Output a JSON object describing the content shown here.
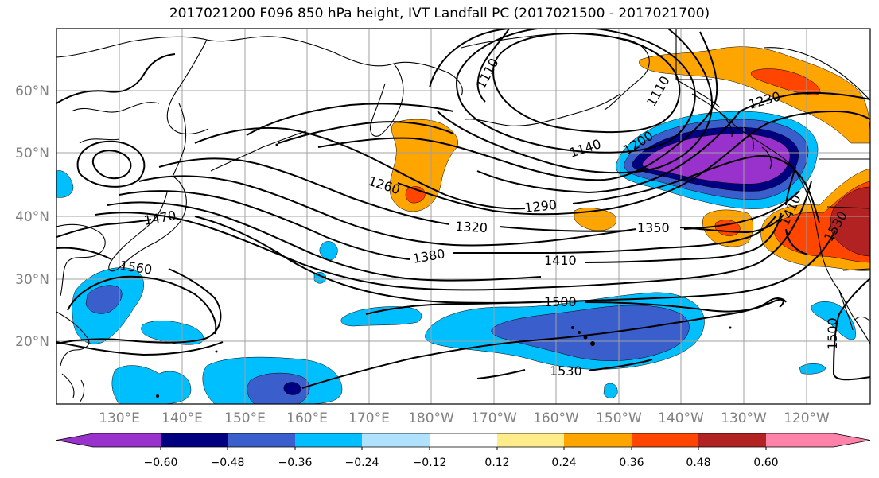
{
  "title": "2017021200 F096 850 hPa height, IVT Landfall PC (2017021500 - 2017021700)",
  "colors": {
    "fill_purple": "#9932CC",
    "fill_navy": "#000080",
    "fill_blue": "#3A5FCD",
    "fill_deepsky": "#00BFFF",
    "fill_lightblue": "#B0E2FF",
    "fill_white": "#FFFFFF",
    "fill_yellow": "#FFEC8B",
    "fill_orange": "#FFA500",
    "fill_orangered": "#FF4500",
    "fill_firebrick": "#B22222",
    "fill_pink": "#FF82AB",
    "contour": "#000000",
    "coast": "#000000",
    "grid": "#A0A0A0",
    "tick_label": "#808080"
  },
  "chart_data": {
    "type": "map",
    "title": "2017021200 F096 850 hPa height, IVT Landfall PC (2017021500 - 2017021700)",
    "grid": true,
    "lat_ticks": [
      "20°N",
      "30°N",
      "40°N",
      "50°N",
      "60°N"
    ],
    "lon_ticks": [
      "130°E",
      "140°E",
      "150°E",
      "160°E",
      "170°E",
      "180°W",
      "170°W",
      "160°W",
      "150°W",
      "140°W",
      "130°W",
      "120°W"
    ],
    "contour_labels": [
      "1110",
      "1110",
      "1140",
      "1200",
      "1230",
      "1260",
      "1290",
      "1320",
      "1350",
      "1380",
      "1410",
      "1410",
      "1470",
      "1500",
      "1500",
      "1530",
      "1530",
      "1560"
    ],
    "colorbar": {
      "ticks": [
        "−0.60",
        "−0.48",
        "−0.36",
        "−0.24",
        "−0.12",
        "0.12",
        "0.24",
        "0.36",
        "0.48",
        "0.60"
      ],
      "extend": "both",
      "colors": [
        "#9932CC",
        "#000080",
        "#3A5FCD",
        "#00BFFF",
        "#B0E2FF",
        "#FFFFFF",
        "#FFEC8B",
        "#FFA500",
        "#FF4500",
        "#B22222",
        "#FF82AB"
      ]
    }
  }
}
